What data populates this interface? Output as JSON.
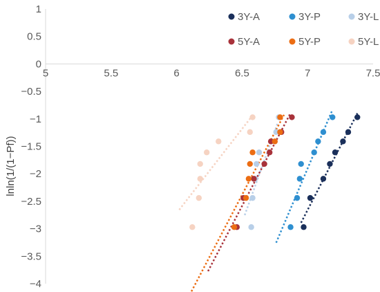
{
  "chart_data": {
    "type": "scatter",
    "xlim": [
      5,
      7.5
    ],
    "ylim": [
      -4,
      1
    ],
    "xticks": [
      "5",
      "5.5",
      "6",
      "6.5",
      "7",
      "7.5"
    ],
    "yticks": [
      "1",
      "0.5",
      "0",
      "−0.5",
      "−1",
      "−1.5",
      "−2",
      "−2.5",
      "−3",
      "−3.5",
      "−4"
    ],
    "xlabel": "",
    "ylabel": "lnln(1/(1−Pf))",
    "legend_position": "top-right",
    "grid": false,
    "trendlines": "linear, dotted",
    "y_values": [
      -0.97,
      -1.24,
      -1.41,
      -1.61,
      -1.82,
      -2.09,
      -2.44,
      -2.97
    ],
    "series": [
      {
        "name": "3Y-A",
        "color": "#1a2f5a",
        "x": [
          7.38,
          7.31,
          7.27,
          7.21,
          7.17,
          7.12,
          7.02,
          6.97
        ],
        "trend_x": [
          6.95,
          7.38
        ]
      },
      {
        "name": "3Y-P",
        "color": "#2e8fd0",
        "x": [
          7.19,
          7.12,
          7.08,
          7.05,
          6.95,
          6.94,
          6.92,
          6.87
        ],
        "trend_x": [
          6.76,
          7.19
        ]
      },
      {
        "name": "3Y-L",
        "color": "#b8cfe8",
        "x": [
          6.78,
          6.76,
          6.75,
          6.63,
          6.61,
          6.6,
          6.58,
          6.57
        ],
        "trend_x": [
          6.52,
          6.77
        ]
      },
      {
        "name": "5Y-A",
        "color": "#a8323a",
        "x": [
          6.88,
          6.8,
          6.72,
          6.71,
          6.67,
          6.59,
          6.51,
          6.46
        ],
        "trend_x": [
          6.24,
          6.87
        ]
      },
      {
        "name": "5Y-P",
        "color": "#ec6d13",
        "x": [
          6.79,
          6.79,
          6.75,
          6.58,
          6.56,
          6.55,
          6.53,
          6.44
        ],
        "trend_x": [
          6.1,
          6.82
        ]
      },
      {
        "name": "5Y-L",
        "color": "#f6d3c2",
        "x": [
          6.58,
          6.56,
          6.32,
          6.23,
          6.18,
          6.18,
          6.17,
          6.12
        ],
        "trend_x": [
          6.02,
          6.59
        ]
      }
    ]
  }
}
